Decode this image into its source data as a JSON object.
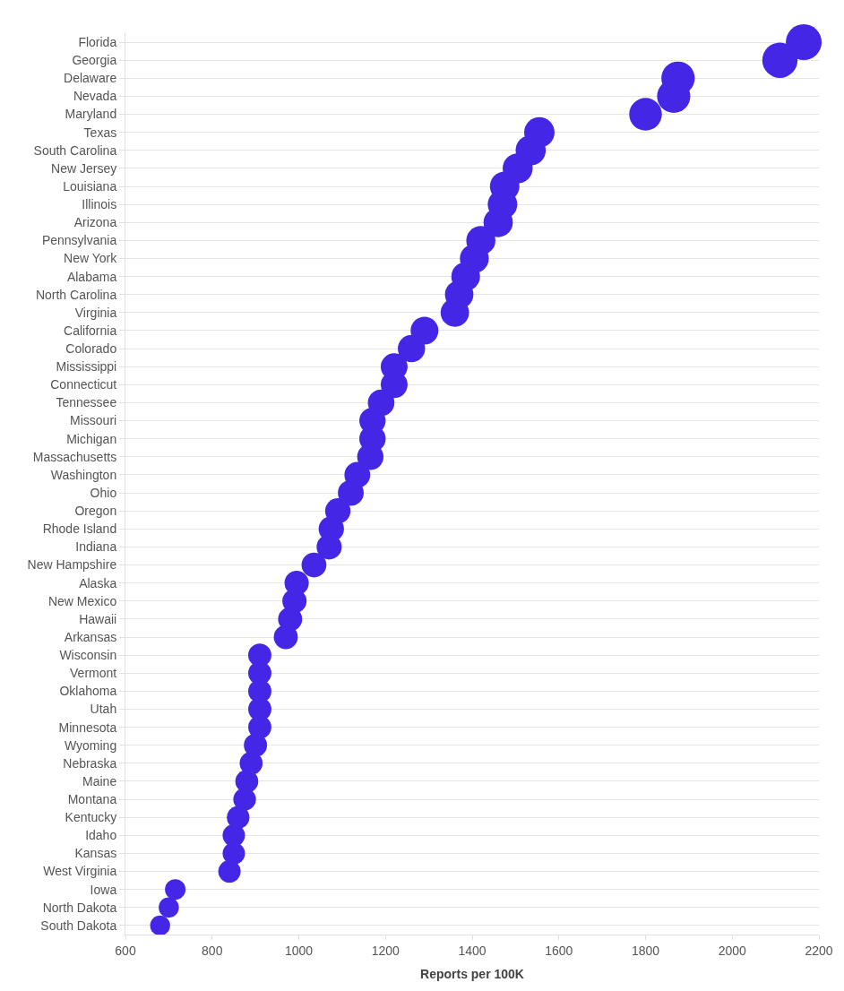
{
  "chart_data": {
    "type": "bubble",
    "xlabel": "Reports per 100K",
    "orientation": "horizontal",
    "categories": [
      "Florida",
      "Georgia",
      "Delaware",
      "Nevada",
      "Maryland",
      "Texas",
      "South Carolina",
      "New Jersey",
      "Louisiana",
      "Illinois",
      "Arizona",
      "Pennsylvania",
      "New York",
      "Alabama",
      "North Carolina",
      "Virginia",
      "California",
      "Colorado",
      "Mississippi",
      "Connecticut",
      "Tennessee",
      "Missouri",
      "Michigan",
      "Massachusetts",
      "Washington",
      "Ohio",
      "Oregon",
      "Rhode Island",
      "Indiana",
      "New Hampshire",
      "Alaska",
      "New Mexico",
      "Hawaii",
      "Arkansas",
      "Wisconsin",
      "Vermont",
      "Oklahoma",
      "Utah",
      "Minnesota",
      "Wyoming",
      "Nebraska",
      "Maine",
      "Montana",
      "Kentucky",
      "Idaho",
      "Kansas",
      "West Virginia",
      "Iowa",
      "North Dakota",
      "South Dakota"
    ],
    "values": [
      2165,
      2110,
      1875,
      1865,
      1800,
      1555,
      1535,
      1505,
      1475,
      1470,
      1460,
      1420,
      1405,
      1385,
      1370,
      1360,
      1290,
      1260,
      1220,
      1220,
      1190,
      1170,
      1170,
      1165,
      1135,
      1120,
      1090,
      1075,
      1070,
      1035,
      995,
      990,
      980,
      970,
      910,
      910,
      910,
      910,
      910,
      900,
      890,
      880,
      875,
      860,
      850,
      850,
      840,
      715,
      700,
      680
    ],
    "sizes": [
      1.0,
      0.97,
      0.87,
      0.86,
      0.83,
      0.72,
      0.71,
      0.7,
      0.68,
      0.68,
      0.67,
      0.66,
      0.65,
      0.64,
      0.63,
      0.63,
      0.6,
      0.58,
      0.56,
      0.56,
      0.55,
      0.54,
      0.54,
      0.54,
      0.52,
      0.52,
      0.5,
      0.5,
      0.49,
      0.48,
      0.46,
      0.46,
      0.45,
      0.45,
      0.42,
      0.42,
      0.42,
      0.42,
      0.42,
      0.42,
      0.41,
      0.41,
      0.4,
      0.4,
      0.39,
      0.39,
      0.39,
      0.33,
      0.32,
      0.31
    ],
    "color": "#4427e6",
    "xlim": [
      600,
      2200
    ],
    "xticks": [
      600,
      800,
      1000,
      1200,
      1400,
      1600,
      1800,
      2000,
      2200
    ],
    "grid": "y"
  }
}
